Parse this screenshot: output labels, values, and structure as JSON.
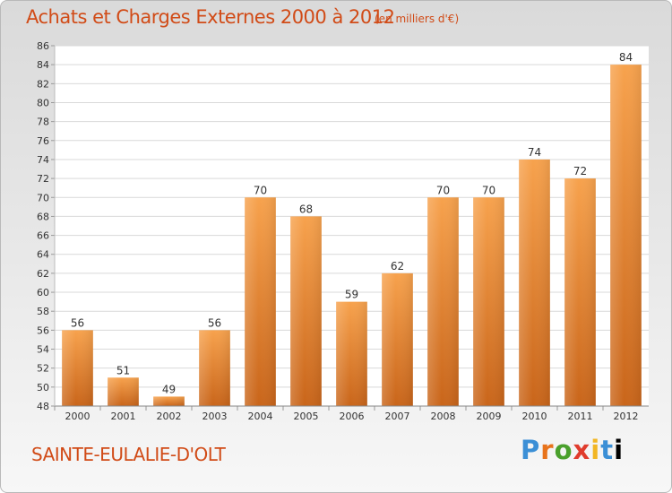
{
  "header": {
    "title": "Achats et Charges Externes 2000 à 2012",
    "unit": "(en milliers d'€)"
  },
  "footer": {
    "place": "SAINTE-EULALIE-D'OLT",
    "logo_letters": [
      "P",
      "r",
      "o",
      "x",
      "i",
      "t",
      "i"
    ]
  },
  "colors": {
    "bar_top": "#f7a24d",
    "bar_bottom": "#c9651a",
    "title": "#d14b17"
  },
  "chart_data": {
    "type": "bar",
    "title": "Achats et Charges Externes 2000 à 2012",
    "subtitle": "(en milliers d'€)",
    "categories": [
      "2000",
      "2001",
      "2002",
      "2003",
      "2004",
      "2005",
      "2006",
      "2007",
      "2008",
      "2009",
      "2010",
      "2011",
      "2012"
    ],
    "values": [
      56,
      51,
      49,
      56,
      70,
      68,
      59,
      62,
      70,
      70,
      74,
      72,
      84
    ],
    "ylim": [
      48,
      86
    ],
    "yticks": [
      48,
      50,
      52,
      54,
      56,
      58,
      60,
      62,
      64,
      66,
      68,
      70,
      72,
      74,
      76,
      78,
      80,
      82,
      84,
      86
    ],
    "grid": true,
    "legend": false
  }
}
